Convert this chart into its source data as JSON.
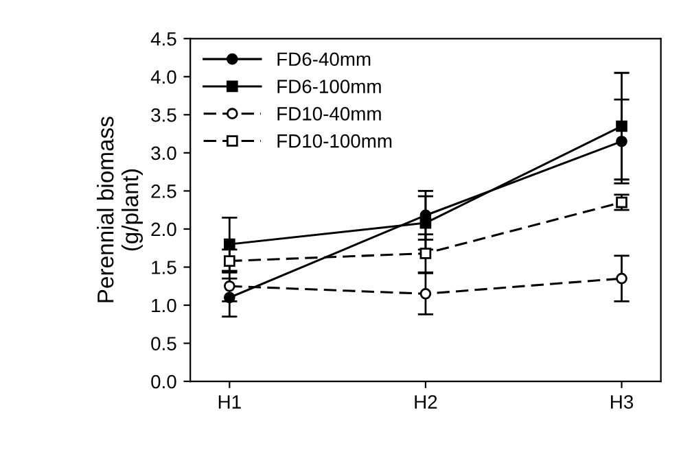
{
  "chart_data": {
    "type": "line",
    "ylabel": "Perennial biomass\n(g/plant)",
    "categories": [
      "H1",
      "H2",
      "H3"
    ],
    "series": [
      {
        "name": "FD6-40mm",
        "color": "#000000",
        "marker": "circle",
        "line_style": "solid",
        "values": [
          1.1,
          2.18,
          3.15
        ],
        "errors": [
          0.25,
          0.32,
          0.55
        ]
      },
      {
        "name": "FD6-100mm",
        "color": "#000000",
        "marker": "square",
        "line_style": "solid",
        "values": [
          1.8,
          2.08,
          3.35
        ],
        "errors": [
          0.35,
          0.35,
          0.7
        ]
      },
      {
        "name": "FD10-40mm",
        "color": "#000000",
        "marker": "circle",
        "line_style": "dashed",
        "values": [
          1.25,
          1.15,
          1.35
        ],
        "errors": [
          0.2,
          0.27,
          0.3
        ]
      },
      {
        "name": "FD10-100mm",
        "color": "#000000",
        "marker": "square",
        "line_style": "dashed",
        "values": [
          1.58,
          1.68,
          2.35
        ],
        "errors": [
          0.15,
          0.25,
          0.1
        ]
      }
    ],
    "ylim": [
      0,
      4.5
    ],
    "yticks": [
      {
        "value": 0,
        "label": "0.0"
      },
      {
        "value": 0.5,
        "label": "0.5"
      },
      {
        "value": 1,
        "label": "1.0"
      },
      {
        "value": 1.5,
        "label": "1.5"
      },
      {
        "value": 2,
        "label": "2.0"
      },
      {
        "value": 2.5,
        "label": "2.5"
      },
      {
        "value": 3,
        "label": "3.0"
      },
      {
        "value": 3.5,
        "label": "3.5"
      },
      {
        "value": 4,
        "label": "4.0"
      },
      {
        "value": 4.5,
        "label": "4.5"
      }
    ],
    "grid": false,
    "legend": "top left"
  }
}
